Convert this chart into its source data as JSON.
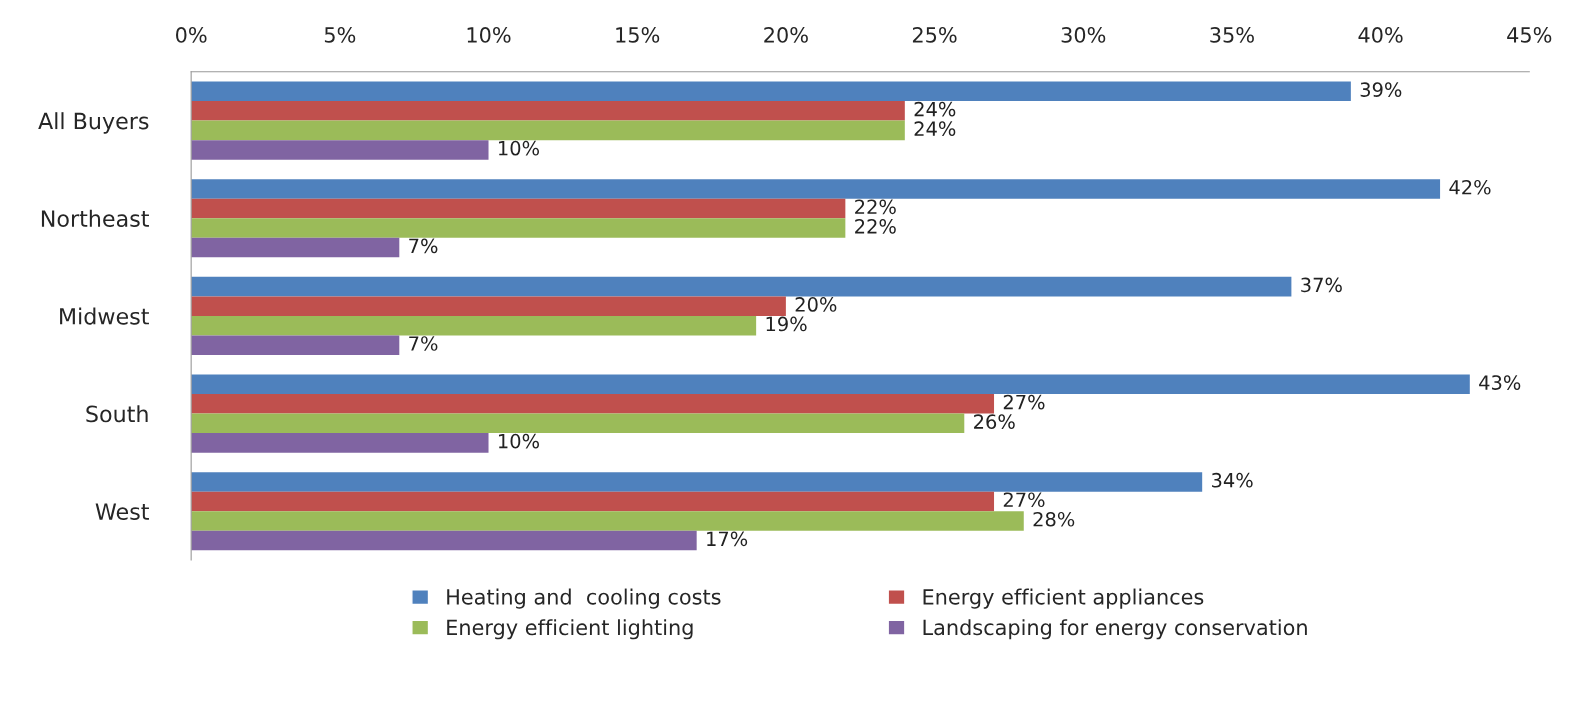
{
  "chart_data": {
    "type": "bar",
    "orientation": "horizontal",
    "categories": [
      "All Buyers",
      "Northeast",
      "Midwest",
      "South",
      "West"
    ],
    "series": [
      {
        "name": "Heating and  cooling costs",
        "color": "#4f81bd",
        "values": [
          39,
          42,
          37,
          43,
          34
        ],
        "value_labels": [
          "39%",
          "42%",
          "37%",
          "43%",
          "34%"
        ]
      },
      {
        "name": "Energy efficient appliances",
        "color": "#c0504d",
        "values": [
          24,
          22,
          20,
          27,
          27
        ],
        "value_labels": [
          "24%",
          "22%",
          "20%",
          "27%",
          "27%"
        ]
      },
      {
        "name": "Energy efficient lighting",
        "color": "#9bbb59",
        "values": [
          24,
          22,
          19,
          26,
          28
        ],
        "value_labels": [
          "24%",
          "22%",
          "19%",
          "26%",
          "28%"
        ]
      },
      {
        "name": "Landscaping for energy conservation",
        "color": "#8064a2",
        "values": [
          10,
          7,
          7,
          10,
          17
        ],
        "value_labels": [
          "10%",
          "7%",
          "7%",
          "10%",
          "17%"
        ]
      }
    ],
    "xlim": [
      0,
      45
    ],
    "xticks": [
      {
        "value": 0,
        "label": "0%"
      },
      {
        "value": 5,
        "label": "5%"
      },
      {
        "value": 10,
        "label": "10%"
      },
      {
        "value": 15,
        "label": "15%"
      },
      {
        "value": 20,
        "label": "20%"
      },
      {
        "value": 25,
        "label": "25%"
      },
      {
        "value": 30,
        "label": "30%"
      },
      {
        "value": 35,
        "label": "35%"
      },
      {
        "value": 40,
        "label": "40%"
      },
      {
        "value": 45,
        "label": "45%"
      }
    ],
    "grid": false,
    "legend": "bottom"
  }
}
